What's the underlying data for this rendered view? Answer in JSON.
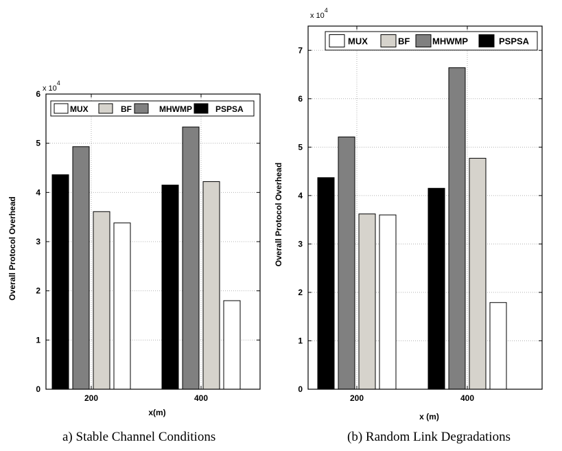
{
  "chart_data": [
    {
      "type": "bar",
      "title": "",
      "caption": "a) Stable Channel Conditions",
      "xlabel": "x(m)",
      "ylabel": "Overall Protocol Overhead",
      "y_exponent_label": "x 10",
      "y_exponent": "4",
      "categories": [
        "200",
        "400"
      ],
      "ylim": [
        0,
        6
      ],
      "yticks": [
        0,
        1,
        2,
        3,
        4,
        5,
        6
      ],
      "grid": true,
      "legend": "top",
      "legend_entries": [
        "MUX",
        "BF",
        "MHWMP",
        "PSPSA"
      ],
      "bar_order": [
        "PSPSA",
        "MHWMP",
        "BF",
        "MUX"
      ],
      "series": [
        {
          "name": "MUX",
          "values": [
            3.38,
            1.8
          ],
          "color": "#ffffff"
        },
        {
          "name": "BF",
          "values": [
            3.61,
            4.22
          ],
          "color": "#d6d3cc"
        },
        {
          "name": "MHWMP",
          "values": [
            4.93,
            5.33
          ],
          "color": "#808080"
        },
        {
          "name": "PSPSA",
          "values": [
            4.36,
            4.15
          ],
          "color": "#000000"
        }
      ]
    },
    {
      "type": "bar",
      "title": "",
      "caption": "(b) Random Link Degradations",
      "xlabel": "x (m)",
      "ylabel": "Overall Protocol Overhead",
      "y_exponent_label": "x 10",
      "y_exponent": "4",
      "categories": [
        "200",
        "400"
      ],
      "ylim": [
        0,
        7.5
      ],
      "yticks": [
        0,
        1,
        2,
        3,
        4,
        5,
        6,
        7
      ],
      "grid": true,
      "legend": "top",
      "legend_entries": [
        "MUX",
        "BF",
        "MHWMP",
        "PSPSA"
      ],
      "bar_order": [
        "PSPSA",
        "MHWMP",
        "BF",
        "MUX"
      ],
      "series": [
        {
          "name": "MUX",
          "values": [
            3.6,
            1.79
          ],
          "color": "#ffffff"
        },
        {
          "name": "BF",
          "values": [
            3.62,
            4.77
          ],
          "color": "#d6d3cc"
        },
        {
          "name": "MHWMP",
          "values": [
            5.21,
            6.64
          ],
          "color": "#808080"
        },
        {
          "name": "PSPSA",
          "values": [
            4.37,
            4.15
          ],
          "color": "#000000"
        }
      ]
    }
  ]
}
